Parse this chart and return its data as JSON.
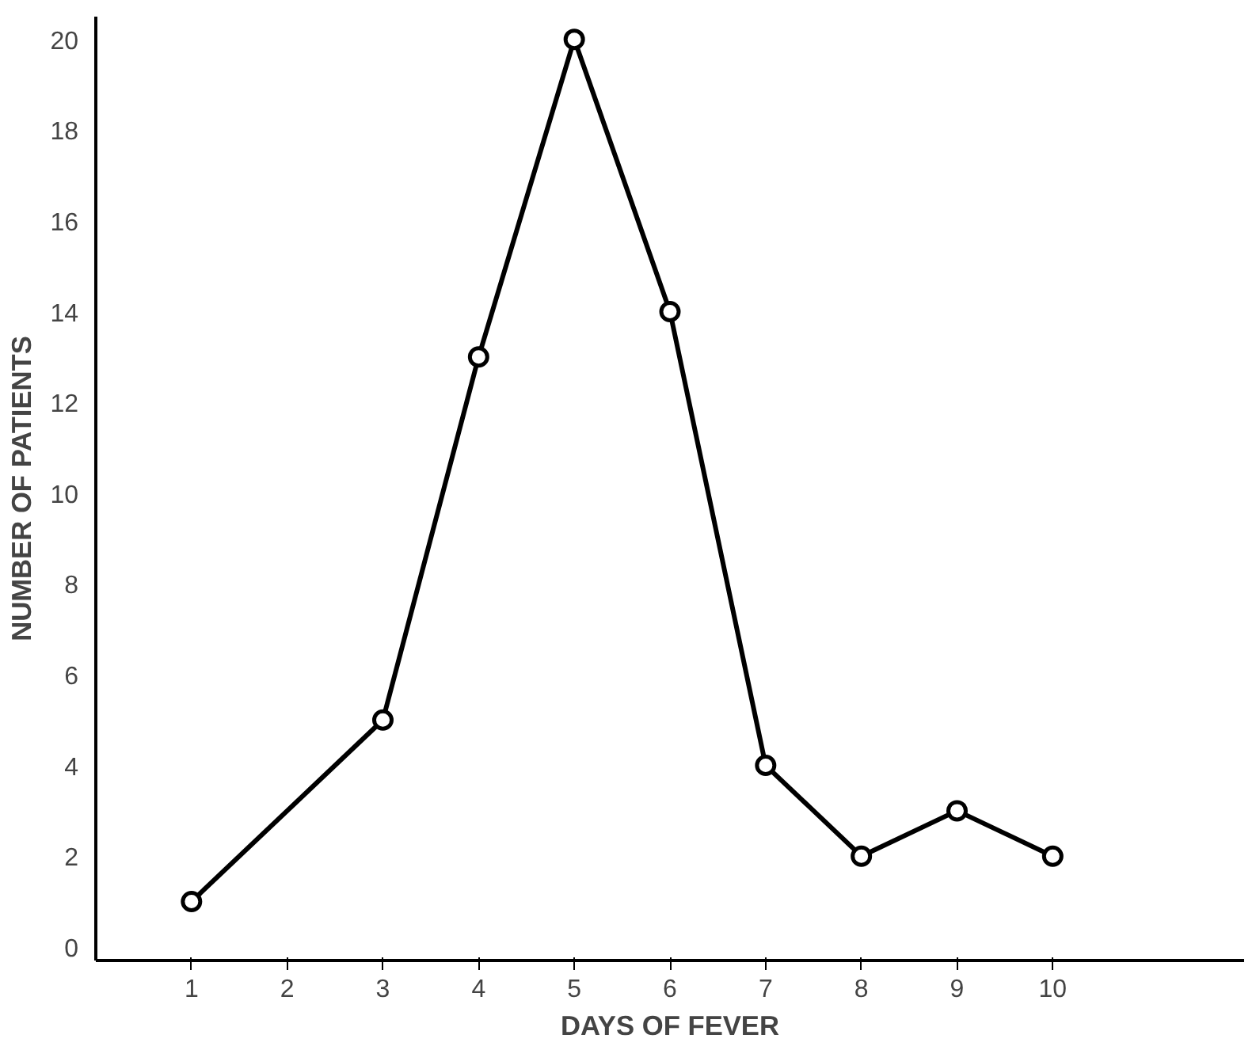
{
  "chart_data": {
    "type": "line",
    "xlabel": "DAYS OF FEVER",
    "ylabel": "NUMBER OF PATIENTS",
    "x": [
      1,
      3,
      4,
      5,
      6,
      7,
      8,
      9,
      10
    ],
    "values": [
      1,
      5,
      13,
      20,
      14,
      4,
      2,
      3,
      2
    ],
    "color": "#000000",
    "marker": "circle",
    "line_style": "solid",
    "grid": false,
    "xlim": [
      0,
      12
    ],
    "xticks": [
      1,
      2,
      3,
      4,
      5,
      6,
      7,
      8,
      9,
      10
    ],
    "ylim": [
      -0.3,
      20.5
    ],
    "yticks": [
      0,
      2,
      4,
      6,
      8,
      10,
      12,
      14,
      16,
      18,
      20
    ]
  }
}
